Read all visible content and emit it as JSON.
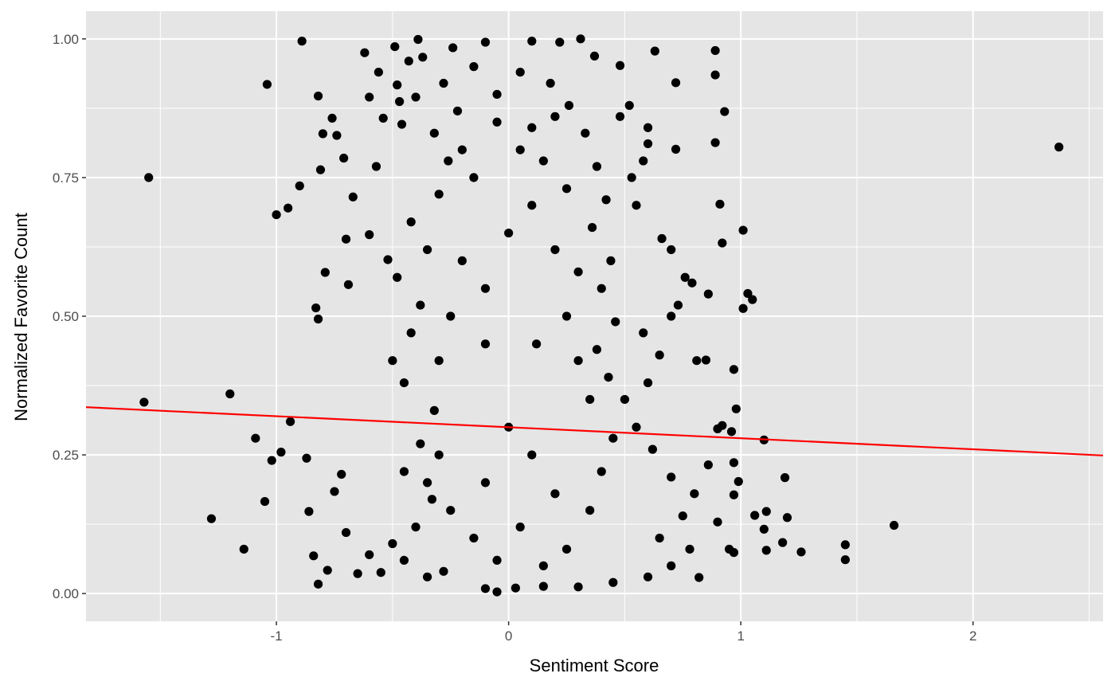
{
  "chart_data": {
    "type": "scatter",
    "title": "",
    "xlabel": "Sentiment Score",
    "ylabel": "Normalized Favorite Count",
    "xlim": [
      -1.82,
      2.56
    ],
    "ylim": [
      -0.05,
      1.05
    ],
    "x_ticks": [
      {
        "value": -1,
        "label": "-1"
      },
      {
        "value": 0,
        "label": "0"
      },
      {
        "value": 1,
        "label": "1"
      },
      {
        "value": 2,
        "label": "2"
      }
    ],
    "y_ticks": [
      {
        "value": 0.0,
        "label": "0.00"
      },
      {
        "value": 0.25,
        "label": "0.25"
      },
      {
        "value": 0.5,
        "label": "0.50"
      },
      {
        "value": 0.75,
        "label": "0.75"
      },
      {
        "value": 1.0,
        "label": "1.00"
      }
    ],
    "grid": true,
    "legend": "none",
    "colors": {
      "panel_background": "#e5e5e5",
      "grid": "#ffffff",
      "points": "#000000",
      "trend_line": "#ff0000"
    },
    "trend_line": {
      "type": "linear",
      "points": [
        [
          -1.82,
          0.336
        ],
        [
          2.56,
          0.249
        ]
      ]
    },
    "series": [
      {
        "values": [
          [
            -1.55,
            0.75
          ],
          [
            -1.57,
            0.345
          ],
          [
            -1.2,
            0.36
          ],
          [
            -1.28,
            0.135
          ],
          [
            -1.14,
            0.08
          ],
          [
            -1.04,
            0.918
          ],
          [
            -1.0,
            0.683
          ],
          [
            -0.98,
            0.255
          ],
          [
            -1.02,
            0.24
          ],
          [
            -1.05,
            0.166
          ],
          [
            -1.09,
            0.28
          ],
          [
            -0.89,
            0.996
          ],
          [
            -0.95,
            0.695
          ],
          [
            -0.94,
            0.31
          ],
          [
            -0.9,
            0.735
          ],
          [
            -0.82,
            0.897
          ],
          [
            -0.8,
            0.829
          ],
          [
            -0.81,
            0.764
          ],
          [
            -0.83,
            0.515
          ],
          [
            -0.82,
            0.495
          ],
          [
            -0.79,
            0.579
          ],
          [
            -0.76,
            0.857
          ],
          [
            -0.74,
            0.826
          ],
          [
            -0.71,
            0.785
          ],
          [
            -0.7,
            0.639
          ],
          [
            -0.69,
            0.557
          ],
          [
            -0.67,
            0.715
          ],
          [
            -0.62,
            0.975
          ],
          [
            -0.6,
            0.895
          ],
          [
            -0.6,
            0.647
          ],
          [
            -0.57,
            0.77
          ],
          [
            -0.56,
            0.94
          ],
          [
            -0.54,
            0.857
          ],
          [
            -0.52,
            0.602
          ],
          [
            -0.49,
            0.986
          ],
          [
            -0.48,
            0.917
          ],
          [
            -0.47,
            0.887
          ],
          [
            -0.46,
            0.846
          ],
          [
            -0.43,
            0.96
          ],
          [
            -0.39,
            0.999
          ],
          [
            -0.37,
            0.967
          ],
          [
            -0.4,
            0.895
          ],
          [
            -0.24,
            0.984
          ],
          [
            -0.1,
            0.994
          ],
          [
            0.1,
            0.996
          ],
          [
            0.22,
            0.994
          ],
          [
            0.31,
            1.0
          ],
          [
            0.37,
            0.969
          ],
          [
            -0.87,
            0.244
          ],
          [
            -0.86,
            0.148
          ],
          [
            -0.84,
            0.068
          ],
          [
            -0.82,
            0.017
          ],
          [
            -0.78,
            0.042
          ],
          [
            -0.75,
            0.184
          ],
          [
            -0.72,
            0.215
          ],
          [
            -0.7,
            0.11
          ],
          [
            -0.65,
            0.036
          ],
          [
            -0.6,
            0.07
          ],
          [
            -0.55,
            0.038
          ],
          [
            -0.5,
            0.09
          ],
          [
            0.48,
            0.952
          ],
          [
            0.63,
            0.978
          ],
          [
            0.72,
            0.921
          ],
          [
            0.89,
            0.979
          ],
          [
            0.89,
            0.935
          ],
          [
            0.93,
            0.869
          ],
          [
            0.89,
            0.813
          ],
          [
            0.6,
            0.811
          ],
          [
            0.72,
            0.801
          ],
          [
            0.91,
            0.702
          ],
          [
            0.92,
            0.632
          ],
          [
            1.01,
            0.655
          ],
          [
            0.86,
            0.54
          ],
          [
            1.01,
            0.514
          ],
          [
            1.03,
            0.541
          ],
          [
            1.05,
            0.53
          ],
          [
            0.97,
            0.404
          ],
          [
            0.98,
            0.333
          ],
          [
            0.96,
            0.292
          ],
          [
            0.92,
            0.303
          ],
          [
            0.9,
            0.297
          ],
          [
            0.85,
            0.421
          ],
          [
            0.81,
            0.42
          ],
          [
            0.86,
            0.232
          ],
          [
            0.97,
            0.236
          ],
          [
            0.99,
            0.202
          ],
          [
            1.1,
            0.277
          ],
          [
            1.19,
            0.209
          ],
          [
            0.97,
            0.178
          ],
          [
            0.9,
            0.129
          ],
          [
            1.06,
            0.141
          ],
          [
            1.11,
            0.148
          ],
          [
            1.1,
            0.116
          ],
          [
            1.2,
            0.137
          ],
          [
            1.18,
            0.092
          ],
          [
            1.11,
            0.078
          ],
          [
            1.26,
            0.075
          ],
          [
            0.95,
            0.08
          ],
          [
            0.97,
            0.074
          ],
          [
            0.82,
            0.029
          ],
          [
            1.45,
            0.088
          ],
          [
            1.45,
            0.061
          ],
          [
            1.66,
            0.123
          ],
          [
            2.37,
            0.805
          ],
          [
            -0.05,
            0.003
          ],
          [
            0.03,
            0.01
          ],
          [
            -0.1,
            0.009
          ],
          [
            0.15,
            0.013
          ],
          [
            0.3,
            0.012
          ],
          [
            0.45,
            0.02
          ],
          [
            0.6,
            0.03
          ],
          [
            0.7,
            0.05
          ],
          [
            0.78,
            0.08
          ],
          [
            0.65,
            0.1
          ],
          [
            0.75,
            0.14
          ],
          [
            0.8,
            0.18
          ],
          [
            0.7,
            0.21
          ],
          [
            0.62,
            0.26
          ],
          [
            0.55,
            0.3
          ],
          [
            0.5,
            0.35
          ],
          [
            0.6,
            0.38
          ],
          [
            0.65,
            0.43
          ],
          [
            0.58,
            0.47
          ],
          [
            0.7,
            0.5
          ],
          [
            0.73,
            0.52
          ],
          [
            0.76,
            0.57
          ],
          [
            0.79,
            0.56
          ],
          [
            0.7,
            0.62
          ],
          [
            0.66,
            0.64
          ],
          [
            0.55,
            0.7
          ],
          [
            0.53,
            0.75
          ],
          [
            0.58,
            0.78
          ],
          [
            0.6,
            0.84
          ],
          [
            0.52,
            0.88
          ],
          [
            0.48,
            0.86
          ],
          [
            -0.28,
            0.04
          ],
          [
            -0.35,
            0.03
          ],
          [
            -0.45,
            0.06
          ],
          [
            -0.4,
            0.12
          ],
          [
            -0.33,
            0.17
          ],
          [
            -0.45,
            0.22
          ],
          [
            -0.38,
            0.27
          ],
          [
            -0.32,
            0.33
          ],
          [
            -0.45,
            0.38
          ],
          [
            -0.5,
            0.42
          ],
          [
            -0.42,
            0.47
          ],
          [
            -0.38,
            0.52
          ],
          [
            -0.48,
            0.57
          ],
          [
            -0.35,
            0.62
          ],
          [
            -0.42,
            0.67
          ],
          [
            -0.3,
            0.72
          ],
          [
            -0.26,
            0.78
          ],
          [
            -0.32,
            0.83
          ],
          [
            -0.22,
            0.87
          ],
          [
            -0.28,
            0.92
          ],
          [
            -0.15,
            0.95
          ],
          [
            -0.05,
            0.9
          ],
          [
            0.05,
            0.94
          ],
          [
            0.18,
            0.92
          ],
          [
            0.26,
            0.88
          ],
          [
            0.33,
            0.83
          ],
          [
            0.38,
            0.77
          ],
          [
            0.42,
            0.71
          ],
          [
            0.36,
            0.66
          ],
          [
            0.44,
            0.6
          ],
          [
            0.4,
            0.55
          ],
          [
            0.46,
            0.49
          ],
          [
            0.38,
            0.44
          ],
          [
            0.43,
            0.39
          ],
          [
            0.35,
            0.35
          ],
          [
            -0.2,
            0.6
          ],
          [
            -0.1,
            0.55
          ],
          [
            0.0,
            0.65
          ],
          [
            0.1,
            0.7
          ],
          [
            0.2,
            0.62
          ],
          [
            -0.15,
            0.75
          ],
          [
            0.05,
            0.8
          ],
          [
            0.15,
            0.78
          ],
          [
            0.25,
            0.73
          ],
          [
            -0.05,
            0.85
          ],
          [
            0.1,
            0.84
          ],
          [
            0.2,
            0.86
          ],
          [
            -0.2,
            0.8
          ],
          [
            0.3,
            0.58
          ],
          [
            -0.25,
            0.5
          ],
          [
            0.25,
            0.5
          ],
          [
            -0.1,
            0.45
          ],
          [
            0.12,
            0.45
          ],
          [
            0.3,
            0.42
          ],
          [
            -0.3,
            0.42
          ],
          [
            0.0,
            0.3
          ],
          [
            0.1,
            0.25
          ],
          [
            -0.1,
            0.2
          ],
          [
            0.2,
            0.18
          ],
          [
            0.05,
            0.12
          ],
          [
            -0.15,
            0.1
          ],
          [
            0.25,
            0.08
          ],
          [
            0.15,
            0.05
          ],
          [
            -0.05,
            0.06
          ],
          [
            0.35,
            0.15
          ],
          [
            -0.25,
            0.15
          ],
          [
            0.4,
            0.22
          ],
          [
            -0.3,
            0.25
          ],
          [
            0.45,
            0.28
          ],
          [
            -0.35,
            0.2
          ]
        ]
      }
    ]
  }
}
